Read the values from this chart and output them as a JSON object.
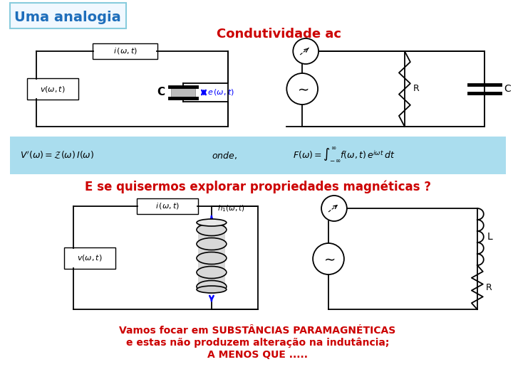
{
  "title_box_text": "Uma analogia",
  "title_box_color": "#1E6EBB",
  "title_box_border": "#88CCDD",
  "condutividade_text": "Condutividade ac",
  "condutividade_color": "#CC0000",
  "formula_bg": "#AADDEE",
  "question_text": "E se quisermos explorar propriedades magnéticas ?",
  "question_color": "#CC0000",
  "bottom_text_line1": "Vamos focar em SUBSTÂNCIAS PARAMAGNÉTICAS",
  "bottom_text_line2": "e estas não produzem alteração na indutância;",
  "bottom_text_line3": "A MENOS QUE .....",
  "bottom_text_color": "#CC0000",
  "bg_color": "#FFFFFF"
}
